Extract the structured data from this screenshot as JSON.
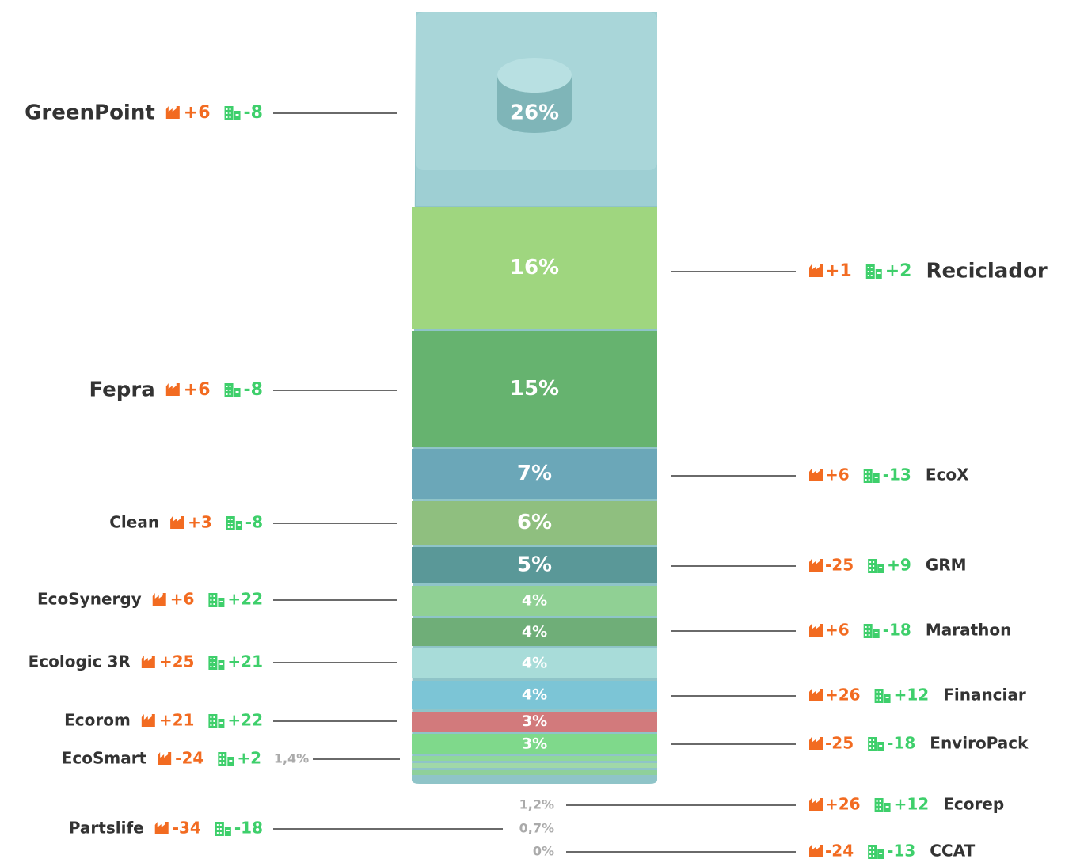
{
  "chart_data": {
    "type": "stacked-carton",
    "categories": [
      "GreenPoint",
      "Reciclador",
      "Fepra",
      "EcoX",
      "Clean",
      "GRM",
      "EcoSynergy",
      "Marathon",
      "Ecologic 3R",
      "Financiar",
      "Ecorom",
      "EnviroPack",
      "EcoSmart",
      "Ecorep",
      "Partslife",
      "CCAT"
    ],
    "values": [
      26,
      16,
      15,
      7,
      6,
      5,
      4,
      4,
      4,
      4,
      3,
      3,
      1.4,
      1.2,
      0.7,
      0
    ],
    "value_labels": [
      "26%",
      "16%",
      "15%",
      "7%",
      "6%",
      "5%",
      "4%",
      "4%",
      "4%",
      "4%",
      "3%",
      "3%",
      "1,4%",
      "1,2%",
      "0,7%",
      "0%"
    ],
    "colors": [
      "#9ecfd3",
      "#9fd67f",
      "#66b36f",
      "#6ba7b8",
      "#8fbf7f",
      "#5a9898",
      "#90d094",
      "#6fae78",
      "#a8dcd9",
      "#7cc5d6",
      "#d27a7c",
      "#7fd98b",
      "#8fd89a",
      "#a0d8a8",
      "#8fd09a",
      "#a0d0b0"
    ],
    "factory_values": [
      6,
      1,
      6,
      6,
      3,
      -25,
      6,
      6,
      25,
      26,
      21,
      -25,
      -24,
      26,
      -34,
      -24
    ],
    "factory_labels": [
      "+6",
      "+1",
      "+6",
      "+6",
      "+3",
      "-25",
      "+6",
      "+6",
      "+25",
      "+26",
      "+21",
      "-25",
      "-24",
      "+26",
      "-34",
      "-24"
    ],
    "building_values": [
      -8,
      2,
      -8,
      -13,
      -8,
      9,
      22,
      -18,
      21,
      12,
      22,
      -18,
      2,
      12,
      -18,
      -13
    ],
    "building_labels": [
      "-8",
      "+2",
      "-8",
      "-13",
      "-8",
      "+9",
      "+22",
      "-18",
      "+21",
      "+12",
      "+22",
      "-18",
      "+2",
      "+12",
      "-18",
      "-13"
    ]
  }
}
